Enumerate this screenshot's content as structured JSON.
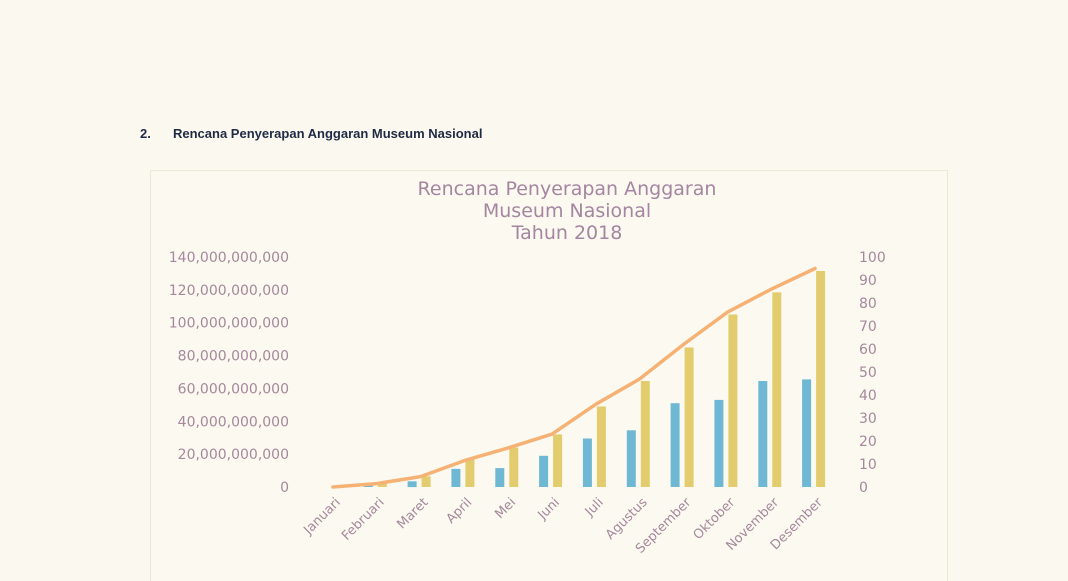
{
  "section": {
    "number": "2.",
    "title": "Rencana Penyerapan Anggaran Museum Nasional"
  },
  "colors": {
    "bar_series_1": "#6fb8d3",
    "bar_series_2": "#e3cc6e",
    "line_series": "#f5b274",
    "text": "#a5889c"
  },
  "chart_data": {
    "type": "bar",
    "title": [
      "Rencana Penyerapan Anggaran",
      "Museum Nasional",
      "Tahun 2018"
    ],
    "categories": [
      "Januari",
      "Februari",
      "Maret",
      "April",
      "Mei",
      "Juni",
      "Juli",
      "Agustus",
      "September",
      "Oktober",
      "November",
      "Desember"
    ],
    "y_left": {
      "ylim": [
        0,
        140000000000
      ],
      "ticks": [
        "0",
        "20,000,000,000",
        "40,000,000,000",
        "60,000,000,000",
        "80,000,000,000",
        "100,000,000,000",
        "120,000,000,000",
        "140,000,000,000"
      ]
    },
    "y_right": {
      "ylim": [
        0,
        100
      ],
      "ticks": [
        "0",
        "10",
        "20",
        "30",
        "40",
        "50",
        "60",
        "70",
        "80",
        "90",
        "100"
      ]
    },
    "series": [
      {
        "type": "bar",
        "axis": "left",
        "color": "#6fb8d3",
        "values": [
          0,
          1000000000,
          3500000000,
          11000000000,
          11500000000,
          19000000000,
          29500000000,
          34500000000,
          51000000000,
          53000000000,
          64500000000,
          65500000000
        ]
      },
      {
        "type": "bar",
        "axis": "left",
        "color": "#e3cc6e",
        "values": [
          0,
          2500000000,
          6500000000,
          17000000000,
          24000000000,
          32000000000,
          49000000000,
          64500000000,
          85000000000,
          105000000000,
          118500000000,
          131500000000
        ]
      },
      {
        "type": "line",
        "axis": "right",
        "color": "#f5b274",
        "values": [
          0,
          1.5,
          4.5,
          11.5,
          17,
          23,
          36,
          47,
          62,
          76,
          86,
          95
        ]
      }
    ],
    "grid": false,
    "legend": "none"
  }
}
